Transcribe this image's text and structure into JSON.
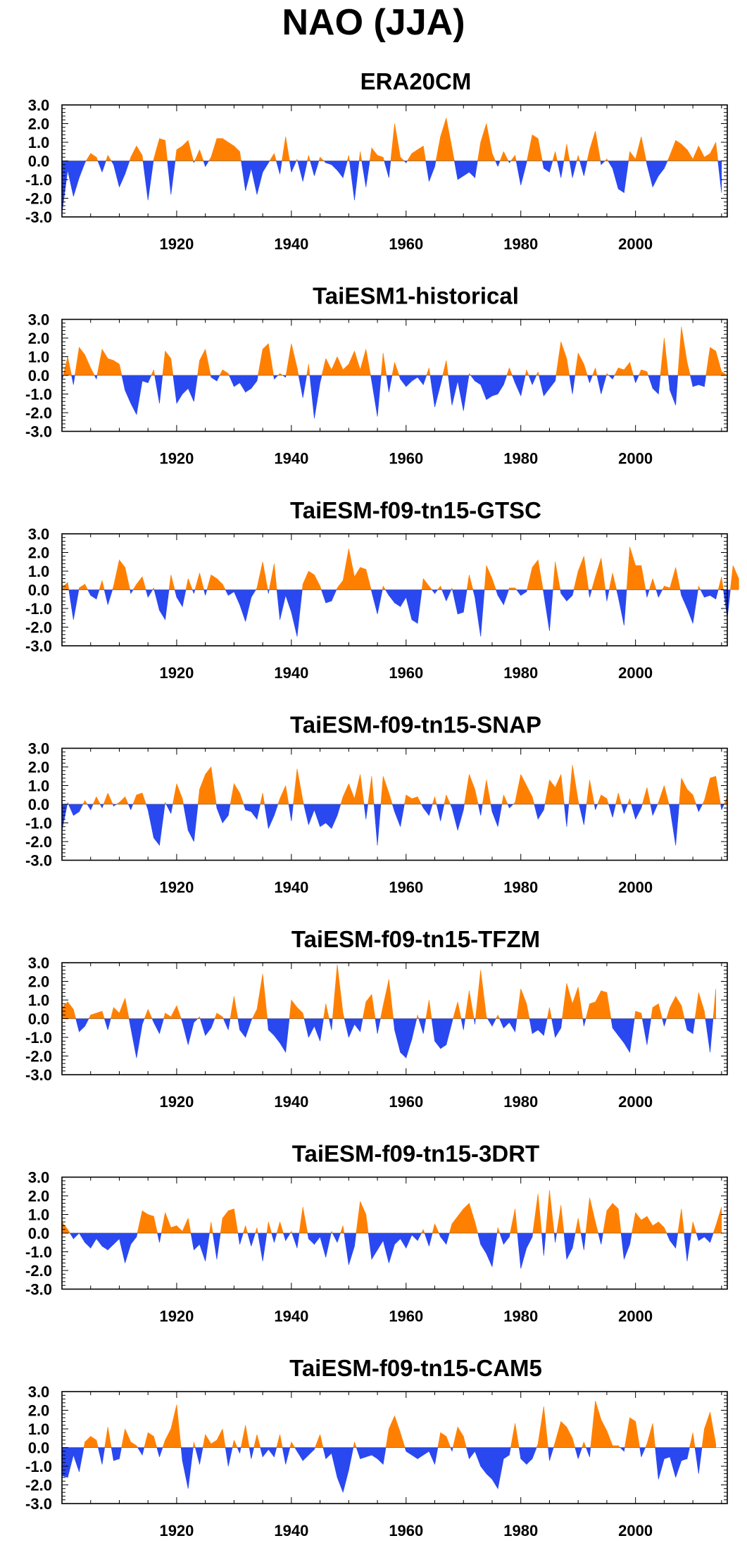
{
  "title": "NAO (JJA)",
  "colors": {
    "positive": "#ff8000",
    "negative": "#2a48f0",
    "axis": "#000000"
  },
  "chart_data": [
    {
      "type": "area",
      "title": "ERA20CM",
      "x_start": 1900,
      "x_step": 1,
      "xlim": [
        1900,
        2015
      ],
      "ylim": [
        -3.0,
        3.0
      ],
      "x_ticks": [
        "1920",
        "1940",
        "1960",
        "1980",
        "2000"
      ],
      "y_ticks": [
        "3.0",
        "2.0",
        "1.0",
        "0.0",
        "-1.0",
        "-2.0",
        "-3.0"
      ],
      "values": [
        -2.8,
        -0.5,
        -1.9,
        -0.9,
        -0.1,
        0.4,
        0.2,
        -0.6,
        0.3,
        -0.2,
        -1.4,
        -0.7,
        0.2,
        0.8,
        0.3,
        -2.1,
        0.1,
        1.2,
        1.1,
        -1.8,
        0.6,
        0.8,
        1.1,
        -0.1,
        0.6,
        -0.3,
        0.2,
        1.2,
        1.2,
        1.0,
        0.8,
        0.5,
        -1.6,
        -0.4,
        -1.8,
        -0.6,
        -0.1,
        0.4,
        -0.7,
        1.3,
        -0.6,
        0.1,
        -1.1,
        0.3,
        -0.8,
        0.2,
        -0.1,
        -0.2,
        -0.5,
        -0.9,
        0.3,
        -2.1,
        0.5,
        -1.4,
        0.7,
        0.3,
        0.2,
        -0.9,
        2.0,
        0.2,
        -0.1,
        0.4,
        0.6,
        0.8,
        -1.1,
        -0.3,
        1.3,
        2.3,
        0.7,
        -1.0,
        -0.8,
        -0.6,
        -0.9,
        1.0,
        2.0,
        0.4,
        -0.3,
        0.5,
        -0.1,
        0.3,
        -1.3,
        -0.1,
        1.4,
        1.2,
        -0.4,
        -0.6,
        0.5,
        -0.9,
        0.9,
        -0.9,
        0.3,
        -0.8,
        0.6,
        1.6,
        -0.2,
        0.1,
        -0.4,
        -1.5,
        -1.7,
        0.5,
        0.1,
        1.3,
        -0.2,
        -1.4,
        -0.8,
        -0.4,
        0.3,
        1.1,
        0.9,
        0.6,
        0.1,
        0.8,
        0.2,
        0.4,
        1.0,
        -1.7
      ]
    },
    {
      "type": "area",
      "title": "TaiESM1-historical",
      "x_start": 1900,
      "x_step": 1,
      "xlim": [
        1900,
        2016
      ],
      "ylim": [
        -3.0,
        3.0
      ],
      "x_ticks": [
        "1920",
        "1940",
        "1960",
        "1980",
        "2000"
      ],
      "y_ticks": [
        "3.0",
        "2.0",
        "1.0",
        "0.0",
        "-1.0",
        "-2.0",
        "-3.0"
      ],
      "values": [
        -0.3,
        1.0,
        -0.5,
        1.5,
        1.1,
        0.4,
        -0.2,
        1.4,
        0.9,
        0.8,
        0.6,
        -0.8,
        -1.5,
        -2.1,
        -0.3,
        -0.4,
        0.3,
        -1.5,
        1.3,
        0.9,
        -1.5,
        -1.0,
        -0.7,
        -1.4,
        0.8,
        1.4,
        -0.1,
        -0.3,
        0.3,
        0.1,
        -0.6,
        -0.4,
        -0.9,
        -0.7,
        -0.3,
        1.4,
        1.7,
        -0.2,
        0.1,
        -0.1,
        1.7,
        0.4,
        -1.2,
        0.6,
        -2.3,
        -0.4,
        0.9,
        0.3,
        1.0,
        0.3,
        0.6,
        1.3,
        0.3,
        1.4,
        -0.3,
        -2.2,
        1.2,
        -0.9,
        0.7,
        -0.2,
        -0.6,
        -0.3,
        -0.1,
        -0.5,
        0.4,
        -1.7,
        -0.5,
        0.8,
        -1.6,
        -0.3,
        -1.9,
        0.1,
        -0.3,
        -0.5,
        -1.3,
        -1.1,
        -1.0,
        -0.5,
        0.4,
        -0.4,
        -1.1,
        0.3,
        -0.5,
        0.2,
        -1.1,
        -0.7,
        -0.3,
        1.8,
        0.9,
        -1.0,
        1.2,
        0.6,
        -0.4,
        0.4,
        -1.0,
        0.1,
        -0.2,
        0.4,
        0.3,
        0.7,
        -0.4,
        0.3,
        0.2,
        -0.7,
        -1.0,
        2.0,
        -0.8,
        -1.6,
        2.6,
        0.7,
        -0.6,
        -0.5,
        -0.6,
        1.5,
        1.3,
        0.2,
        0.0
      ]
    },
    {
      "type": "area",
      "title": "TaiESM-f09-tn15-GTSC",
      "x_start": 1900,
      "x_step": 1,
      "xlim": [
        1900,
        2016
      ],
      "ylim": [
        -3.0,
        3.0
      ],
      "x_ticks": [
        "1920",
        "1940",
        "1960",
        "1980",
        "2000"
      ],
      "y_ticks": [
        "3.0",
        "2.0",
        "1.0",
        "0.0",
        "-1.0",
        "-2.0",
        "-3.0"
      ],
      "values": [
        0.1,
        0.4,
        -1.6,
        0.1,
        0.3,
        -0.3,
        -0.5,
        0.5,
        -0.8,
        0.2,
        1.6,
        1.2,
        -0.2,
        0.3,
        0.7,
        -0.4,
        0.1,
        -1.1,
        -1.6,
        0.8,
        -0.4,
        -0.9,
        0.6,
        -0.2,
        0.9,
        -0.3,
        0.8,
        0.6,
        0.3,
        -0.3,
        -0.1,
        -0.8,
        -1.7,
        -0.4,
        0.1,
        1.5,
        -0.2,
        1.4,
        -1.6,
        -0.3,
        -1.2,
        -2.5,
        0.3,
        1.0,
        0.8,
        0.2,
        -0.7,
        -0.6,
        0.1,
        0.5,
        2.2,
        0.7,
        1.2,
        1.1,
        -0.1,
        -1.3,
        0.2,
        -0.3,
        -0.7,
        -0.9,
        -0.4,
        -1.6,
        -1.8,
        0.6,
        0.2,
        -0.2,
        0.2,
        -0.6,
        0.1,
        -1.3,
        -1.2,
        0.8,
        -0.4,
        -2.5,
        1.3,
        0.6,
        -0.3,
        -0.8,
        0.1,
        0.1,
        -0.3,
        -0.1,
        1.2,
        1.6,
        -0.2,
        -2.2,
        1.5,
        -0.2,
        -0.6,
        -0.3,
        1.0,
        1.8,
        -0.4,
        0.7,
        1.7,
        -0.6,
        0.9,
        -0.4,
        -1.9,
        2.3,
        1.3,
        1.3,
        -0.4,
        0.6,
        -0.4,
        0.2,
        0.1,
        1.2,
        -0.3,
        -1.0,
        -1.8,
        0.2,
        -0.4,
        -0.3,
        -0.5,
        0.7,
        -1.5,
        1.3,
        0.6
      ]
    },
    {
      "type": "area",
      "title": "TaiESM-f09-tn15-SNAP",
      "x_start": 1900,
      "x_step": 1,
      "xlim": [
        1900,
        2015
      ],
      "ylim": [
        -3.0,
        3.0
      ],
      "x_ticks": [
        "1920",
        "1940",
        "1960",
        "1980",
        "2000"
      ],
      "y_ticks": [
        "3.0",
        "2.0",
        "1.0",
        "0.0",
        "-1.0",
        "-2.0",
        "-3.0"
      ],
      "values": [
        -1.4,
        0.1,
        -0.6,
        -0.4,
        0.2,
        -0.3,
        0.4,
        -0.2,
        0.6,
        -0.1,
        0.1,
        0.4,
        -0.3,
        0.5,
        0.6,
        -0.3,
        -1.8,
        -2.2,
        0.1,
        -0.5,
        1.1,
        0.3,
        -1.4,
        -2.0,
        0.8,
        1.6,
        2.0,
        -0.2,
        -1.0,
        -0.6,
        1.1,
        0.6,
        -0.3,
        -0.4,
        -0.8,
        0.6,
        -1.3,
        -0.6,
        0.3,
        1.0,
        -0.9,
        1.9,
        0.2,
        -1.1,
        -0.3,
        -1.2,
        -1.0,
        -1.3,
        -0.6,
        0.4,
        1.1,
        0.3,
        1.6,
        -0.8,
        1.5,
        -2.2,
        1.5,
        0.6,
        -0.4,
        -1.2,
        0.5,
        0.3,
        0.4,
        -0.2,
        -0.6,
        0.4,
        -0.9,
        0.5,
        -0.2,
        -1.4,
        -0.3,
        1.6,
        0.8,
        -0.6,
        1.3,
        -0.4,
        -1.2,
        0.5,
        -0.2,
        0.1,
        1.6,
        1.0,
        0.4,
        -0.8,
        -0.3,
        1.3,
        0.9,
        1.6,
        -1.2,
        2.1,
        0.2,
        -1.1,
        1.3,
        -0.3,
        0.5,
        0.3,
        -0.7,
        0.6,
        -0.5,
        0.3,
        -0.8,
        -0.2,
        0.9,
        -0.6,
        0.1,
        1.0,
        -0.2,
        -2.2,
        1.4,
        0.8,
        0.5,
        -0.4,
        0.2,
        1.4,
        1.5,
        -0.3,
        0.4
      ]
    },
    {
      "type": "area",
      "title": "TaiESM-f09-tn15-TFZM",
      "x_start": 1900,
      "x_step": 1,
      "xlim": [
        1900,
        2015
      ],
      "ylim": [
        -3.0,
        3.0
      ],
      "x_ticks": [
        "1920",
        "1940",
        "1960",
        "1980",
        "2000"
      ],
      "y_ticks": [
        "3.0",
        "2.0",
        "1.0",
        "0.0",
        "-1.0",
        "-2.0",
        "-3.0"
      ],
      "values": [
        0.6,
        0.9,
        0.5,
        -0.7,
        -0.4,
        0.2,
        0.3,
        0.4,
        -0.6,
        0.6,
        0.3,
        1.1,
        -0.5,
        -2.1,
        -0.3,
        0.5,
        -0.2,
        -0.8,
        0.3,
        0.1,
        0.7,
        -0.2,
        -1.4,
        -0.2,
        0.1,
        -0.9,
        -0.5,
        0.3,
        0.1,
        -0.6,
        1.2,
        -0.6,
        -1.0,
        -0.1,
        0.5,
        2.4,
        -0.6,
        -0.9,
        -1.3,
        -1.8,
        1.0,
        0.6,
        0.3,
        -1.0,
        -0.4,
        -1.2,
        0.8,
        -0.6,
        2.9,
        0.3,
        -1.0,
        -0.3,
        -0.7,
        0.9,
        1.3,
        -0.8,
        0.7,
        2.1,
        -0.6,
        -1.8,
        -2.1,
        -1.1,
        0.2,
        -0.8,
        1.0,
        -1.2,
        -1.6,
        -1.4,
        -0.2,
        0.9,
        -0.6,
        1.5,
        -0.3,
        2.6,
        0.1,
        -0.4,
        0.2,
        -0.5,
        -0.2,
        -0.7,
        1.6,
        0.8,
        -0.8,
        -0.6,
        -0.9,
        0.6,
        -1.0,
        -0.5,
        1.9,
        0.8,
        1.7,
        -0.4,
        0.8,
        0.9,
        1.5,
        1.4,
        -0.5,
        -0.9,
        -1.3,
        -1.8,
        0.4,
        0.3,
        -1.4,
        0.6,
        0.8,
        -0.4,
        0.6,
        1.2,
        0.7,
        -0.6,
        -0.8,
        1.4,
        0.4,
        -1.8,
        1.6
      ]
    },
    {
      "type": "area",
      "title": "TaiESM-f09-tn15-3DRT",
      "x_start": 1900,
      "x_step": 1,
      "xlim": [
        1900,
        2015
      ],
      "ylim": [
        -3.0,
        3.0
      ],
      "x_ticks": [
        "1920",
        "1940",
        "1960",
        "1980",
        "2000"
      ],
      "y_ticks": [
        "3.0",
        "2.0",
        "1.0",
        "0.0",
        "-1.0",
        "-2.0",
        "-3.0"
      ],
      "values": [
        0.6,
        0.2,
        -0.3,
        0.0,
        -0.5,
        -0.8,
        -0.3,
        -0.7,
        -0.9,
        -0.6,
        -0.3,
        -1.6,
        -0.6,
        -0.2,
        1.2,
        1.0,
        0.9,
        -0.5,
        1.1,
        0.3,
        0.4,
        0.1,
        0.8,
        -0.9,
        -0.6,
        -1.5,
        0.6,
        -1.4,
        0.8,
        1.2,
        1.3,
        -0.6,
        0.4,
        -0.7,
        0.3,
        -1.5,
        0.6,
        -0.5,
        0.6,
        -0.4,
        0.1,
        -0.8,
        1.4,
        -0.3,
        -0.6,
        -0.2,
        -1.3,
        0.1,
        -0.5,
        0.4,
        -1.7,
        -0.7,
        1.7,
        1.0,
        -1.4,
        -0.9,
        -0.4,
        -1.6,
        -0.6,
        -0.3,
        -0.8,
        -0.1,
        -0.4,
        0.2,
        -0.7,
        0.5,
        -0.2,
        -0.6,
        0.5,
        0.9,
        1.3,
        1.6,
        0.6,
        -0.6,
        -1.1,
        -1.8,
        0.3,
        -0.6,
        -0.2,
        1.3,
        -1.9,
        -0.8,
        -0.2,
        2.1,
        -1.2,
        2.3,
        -0.5,
        1.5,
        -1.4,
        -0.8,
        0.8,
        -0.9,
        1.9,
        0.6,
        -0.6,
        1.2,
        1.6,
        1.3,
        -1.4,
        -0.6,
        1.1,
        0.7,
        0.9,
        0.4,
        0.6,
        0.3,
        -0.4,
        -0.8,
        1.3,
        -1.5,
        0.6,
        -0.4,
        -0.2,
        -0.5,
        0.4,
        1.4
      ]
    },
    {
      "type": "area",
      "title": "TaiESM-f09-tn15-CAM5",
      "x_start": 1900,
      "x_step": 1,
      "xlim": [
        1900,
        2016
      ],
      "ylim": [
        -3.0,
        3.0
      ],
      "x_ticks": [
        "1920",
        "1940",
        "1960",
        "1980",
        "2000"
      ],
      "y_ticks": [
        "3.0",
        "2.0",
        "1.0",
        "0.0",
        "-1.0",
        "-2.0",
        "-3.0"
      ],
      "values": [
        -1.5,
        -1.6,
        -0.4,
        -1.3,
        0.3,
        0.6,
        0.4,
        -0.9,
        1.1,
        -0.7,
        -0.6,
        1.0,
        0.3,
        0.1,
        -0.4,
        0.8,
        0.6,
        -0.5,
        0.4,
        1.0,
        2.3,
        -0.7,
        -2.2,
        0.3,
        -0.9,
        0.7,
        0.2,
        0.4,
        1.0,
        -1.0,
        0.4,
        -0.3,
        1.2,
        -0.6,
        0.7,
        -0.5,
        -0.1,
        -0.5,
        0.7,
        -0.9,
        0.3,
        -0.2,
        -0.7,
        -0.4,
        -0.1,
        0.7,
        -0.6,
        -0.3,
        -1.6,
        -2.4,
        -1.2,
        0.3,
        -0.6,
        -0.5,
        -0.4,
        -0.6,
        -0.9,
        1.0,
        1.7,
        0.8,
        -0.2,
        -0.4,
        -0.6,
        -0.4,
        -0.2,
        -0.9,
        0.8,
        0.6,
        -0.2,
        1.1,
        0.6,
        -0.6,
        -0.2,
        -1.0,
        -1.4,
        -1.7,
        -2.2,
        -0.6,
        -0.4,
        1.3,
        -0.6,
        -0.9,
        -0.6,
        0.2,
        2.2,
        -0.7,
        0.3,
        1.4,
        1.1,
        0.5,
        -0.6,
        0.3,
        -0.5,
        2.5,
        1.5,
        0.9,
        0.1,
        0.1,
        -0.2,
        1.6,
        1.4,
        -0.5,
        0.2,
        1.3,
        -1.7,
        -0.6,
        -0.5,
        -1.6,
        -0.7,
        -0.6,
        0.8,
        -1.4,
        1.0,
        1.9,
        0.2
      ]
    }
  ]
}
